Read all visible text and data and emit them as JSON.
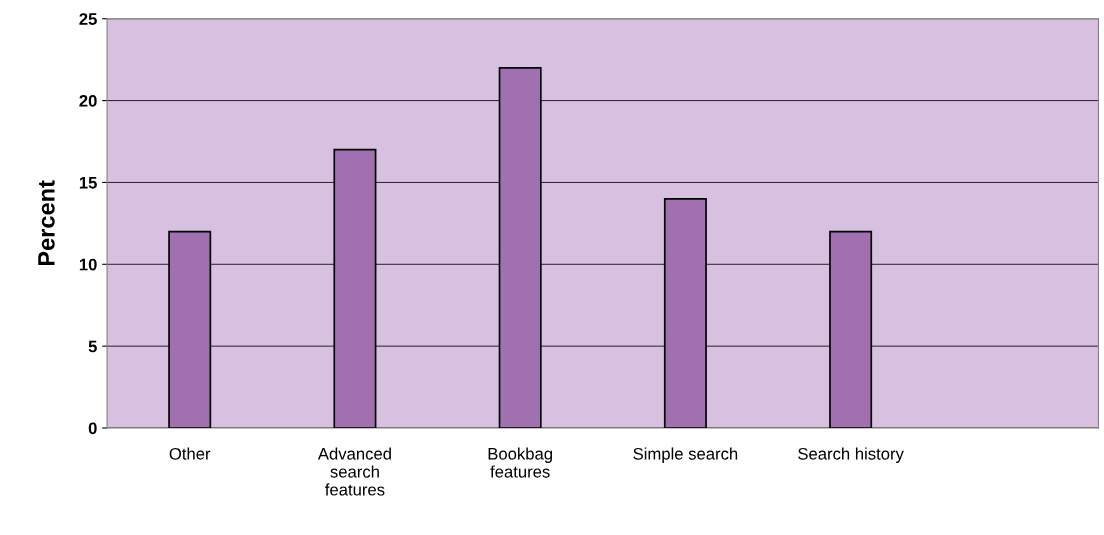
{
  "chart_data": {
    "type": "bar",
    "ylabel": "Percent",
    "categories": [
      "Other",
      "Advanced\nsearch\nfeatures",
      "Bookbag\nfeatures",
      "Simple search",
      "Search history",
      null
    ],
    "values": [
      12,
      17,
      22,
      14,
      12,
      null
    ],
    "color": "#a070b0",
    "ylim": [
      0,
      25
    ],
    "yticks": [
      0,
      5,
      10,
      15,
      20,
      25
    ],
    "grid": "y"
  }
}
